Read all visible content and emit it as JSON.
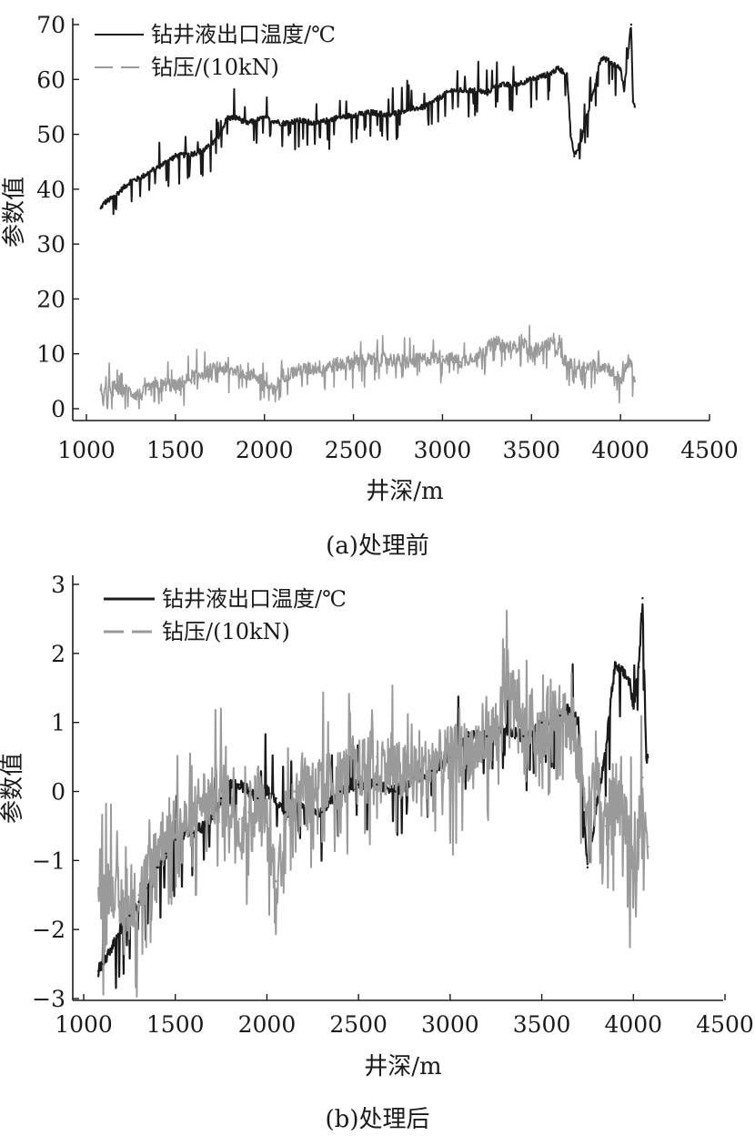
{
  "chart_data": [
    {
      "type": "line",
      "caption": "(a)处理前",
      "xlabel": "井深/m",
      "ylabel": "参数值",
      "xlim": [
        1000,
        4500
      ],
      "ylim": [
        0,
        70
      ],
      "xticks": [
        1000,
        1500,
        2000,
        2500,
        3000,
        3500,
        4000,
        4500
      ],
      "yticks": [
        0,
        10,
        20,
        30,
        40,
        50,
        60,
        70
      ],
      "legend_position": "top-left",
      "grid": false,
      "series": [
        {
          "name": "钻井液出口温度/℃",
          "color": "#1a1a1a",
          "dash": "solid",
          "points": [
            [
              1080,
              36.5
            ],
            [
              1100,
              37.5
            ],
            [
              1150,
              38.5
            ],
            [
              1200,
              40
            ],
            [
              1250,
              41.5
            ],
            [
              1300,
              42
            ],
            [
              1350,
              43
            ],
            [
              1400,
              44
            ],
            [
              1450,
              45
            ],
            [
              1500,
              46
            ],
            [
              1600,
              46.5
            ],
            [
              1650,
              47
            ],
            [
              1700,
              48
            ],
            [
              1750,
              50
            ],
            [
              1790,
              53
            ],
            [
              1850,
              53
            ],
            [
              1900,
              52
            ],
            [
              1950,
              52.5
            ],
            [
              2000,
              53
            ],
            [
              2100,
              52
            ],
            [
              2200,
              52.5
            ],
            [
              2300,
              52
            ],
            [
              2400,
              53
            ],
            [
              2500,
              53.5
            ],
            [
              2600,
              54
            ],
            [
              2700,
              53.5
            ],
            [
              2800,
              54.5
            ],
            [
              2900,
              55
            ],
            [
              3000,
              57
            ],
            [
              3050,
              58
            ],
            [
              3100,
              58
            ],
            [
              3200,
              58
            ],
            [
              3250,
              57.5
            ],
            [
              3300,
              59
            ],
            [
              3400,
              59
            ],
            [
              3500,
              60
            ],
            [
              3600,
              61
            ],
            [
              3650,
              62
            ],
            [
              3700,
              61
            ],
            [
              3720,
              50
            ],
            [
              3740,
              46
            ],
            [
              3780,
              49
            ],
            [
              3800,
              52
            ],
            [
              3850,
              58
            ],
            [
              3880,
              63
            ],
            [
              3900,
              64
            ],
            [
              3950,
              63
            ],
            [
              4000,
              62
            ],
            [
              4020,
              58
            ],
            [
              4040,
              64
            ],
            [
              4060,
              70
            ],
            [
              4070,
              56
            ],
            [
              4080,
              55
            ]
          ]
        },
        {
          "name": "钻压/(10kN)",
          "color": "#999999",
          "dash": "dashed",
          "points": [
            [
              1080,
              3.5
            ],
            [
              1100,
              3
            ],
            [
              1150,
              4
            ],
            [
              1200,
              3.5
            ],
            [
              1250,
              3
            ],
            [
              1300,
              2.5
            ],
            [
              1350,
              3.5
            ],
            [
              1400,
              4
            ],
            [
              1450,
              4.5
            ],
            [
              1500,
              4
            ],
            [
              1550,
              5
            ],
            [
              1600,
              6
            ],
            [
              1650,
              6.5
            ],
            [
              1700,
              7
            ],
            [
              1750,
              7.5
            ],
            [
              1800,
              7
            ],
            [
              1850,
              7
            ],
            [
              1900,
              6.5
            ],
            [
              1950,
              6
            ],
            [
              2000,
              5
            ],
            [
              2050,
              3
            ],
            [
              2100,
              6
            ],
            [
              2200,
              7
            ],
            [
              2300,
              7.5
            ],
            [
              2400,
              8
            ],
            [
              2500,
              8.5
            ],
            [
              2600,
              9
            ],
            [
              2700,
              9
            ],
            [
              2800,
              8.5
            ],
            [
              2900,
              9
            ],
            [
              3000,
              9.5
            ],
            [
              3100,
              8.5
            ],
            [
              3200,
              10
            ],
            [
              3300,
              12
            ],
            [
              3400,
              11
            ],
            [
              3450,
              12.5
            ],
            [
              3500,
              10
            ],
            [
              3550,
              11
            ],
            [
              3600,
              12
            ],
            [
              3650,
              11
            ],
            [
              3700,
              8
            ],
            [
              3800,
              7.5
            ],
            [
              3900,
              8
            ],
            [
              3950,
              7
            ],
            [
              4000,
              5
            ],
            [
              4050,
              9
            ],
            [
              4080,
              5
            ]
          ]
        }
      ]
    },
    {
      "type": "line",
      "caption": "(b)处理后",
      "xlabel": "井深/m",
      "ylabel": "参数值",
      "xlim": [
        1000,
        4500
      ],
      "ylim": [
        -3,
        3
      ],
      "xticks": [
        1000,
        1500,
        2000,
        2500,
        3000,
        3500,
        4000,
        4500
      ],
      "yticks": [
        -3,
        -2,
        -1,
        0,
        1,
        2,
        3
      ],
      "legend_position": "top-left",
      "grid": false,
      "series": [
        {
          "name": "钻井液出口温度/℃",
          "color": "#1a1a1a",
          "dash": "solid",
          "points": [
            [
              1080,
              -2.6
            ],
            [
              1100,
              -2.5
            ],
            [
              1150,
              -2.3
            ],
            [
              1200,
              -2.0
            ],
            [
              1250,
              -1.8
            ],
            [
              1300,
              -1.6
            ],
            [
              1350,
              -1.4
            ],
            [
              1400,
              -1.1
            ],
            [
              1450,
              -0.9
            ],
            [
              1500,
              -0.7
            ],
            [
              1550,
              -0.6
            ],
            [
              1600,
              -0.6
            ],
            [
              1650,
              -0.5
            ],
            [
              1700,
              -0.4
            ],
            [
              1750,
              -0.1
            ],
            [
              1800,
              0.1
            ],
            [
              1850,
              0.1
            ],
            [
              1900,
              0.0
            ],
            [
              1950,
              -0.1
            ],
            [
              2000,
              0.0
            ],
            [
              2050,
              -0.1
            ],
            [
              2100,
              -0.3
            ],
            [
              2200,
              -0.2
            ],
            [
              2300,
              -0.3
            ],
            [
              2400,
              0.0
            ],
            [
              2500,
              0.1
            ],
            [
              2600,
              0.1
            ],
            [
              2700,
              0.0
            ],
            [
              2800,
              0.2
            ],
            [
              2900,
              0.3
            ],
            [
              3000,
              0.5
            ],
            [
              3100,
              0.8
            ],
            [
              3200,
              0.8
            ],
            [
              3300,
              0.9
            ],
            [
              3400,
              0.8
            ],
            [
              3500,
              1.0
            ],
            [
              3600,
              1.1
            ],
            [
              3650,
              1.2
            ],
            [
              3700,
              1.0
            ],
            [
              3730,
              -0.3
            ],
            [
              3750,
              -1.1
            ],
            [
              3780,
              -0.6
            ],
            [
              3800,
              -0.2
            ],
            [
              3850,
              0.6
            ],
            [
              3880,
              1.4
            ],
            [
              3900,
              1.8
            ],
            [
              3950,
              1.7
            ],
            [
              3980,
              1.6
            ],
            [
              4000,
              1.2
            ],
            [
              4030,
              1.8
            ],
            [
              4050,
              2.8
            ],
            [
              4070,
              0.5
            ],
            [
              4080,
              0.5
            ]
          ]
        },
        {
          "name": "钻压/(10kN)",
          "color": "#999999",
          "dash": "dashed",
          "points": [
            [
              1080,
              -1.4
            ],
            [
              1100,
              -1.5
            ],
            [
              1150,
              -1.3
            ],
            [
              1200,
              -1.6
            ],
            [
              1250,
              -1.7
            ],
            [
              1300,
              -1.5
            ],
            [
              1350,
              -1.2
            ],
            [
              1400,
              -0.8
            ],
            [
              1450,
              -0.6
            ],
            [
              1500,
              -0.4
            ],
            [
              1550,
              -0.5
            ],
            [
              1600,
              -0.3
            ],
            [
              1650,
              -0.1
            ],
            [
              1700,
              -0.1
            ],
            [
              1750,
              0.0
            ],
            [
              1800,
              -0.2
            ],
            [
              1850,
              -0.4
            ],
            [
              1900,
              -0.3
            ],
            [
              1950,
              0.0
            ],
            [
              2000,
              -0.5
            ],
            [
              2050,
              -1.3
            ],
            [
              2100,
              -0.4
            ],
            [
              2150,
              0.0
            ],
            [
              2200,
              0.2
            ],
            [
              2300,
              0.1
            ],
            [
              2400,
              0.2
            ],
            [
              2500,
              0.3
            ],
            [
              2600,
              0.5
            ],
            [
              2700,
              0.3
            ],
            [
              2800,
              0.2
            ],
            [
              2900,
              0.4
            ],
            [
              3000,
              0.5
            ],
            [
              3100,
              0.6
            ],
            [
              3200,
              0.7
            ],
            [
              3300,
              1.2
            ],
            [
              3350,
              1.4
            ],
            [
              3400,
              0.9
            ],
            [
              3450,
              1.0
            ],
            [
              3500,
              0.8
            ],
            [
              3550,
              1.2
            ],
            [
              3600,
              1.3
            ],
            [
              3650,
              0.9
            ],
            [
              3700,
              0.5
            ],
            [
              3750,
              -0.2
            ],
            [
              3800,
              0.2
            ],
            [
              3850,
              -0.5
            ],
            [
              3900,
              0.1
            ],
            [
              3950,
              -0.3
            ],
            [
              4000,
              -1.3
            ],
            [
              4050,
              0.2
            ],
            [
              4080,
              -0.8
            ]
          ]
        }
      ]
    }
  ]
}
